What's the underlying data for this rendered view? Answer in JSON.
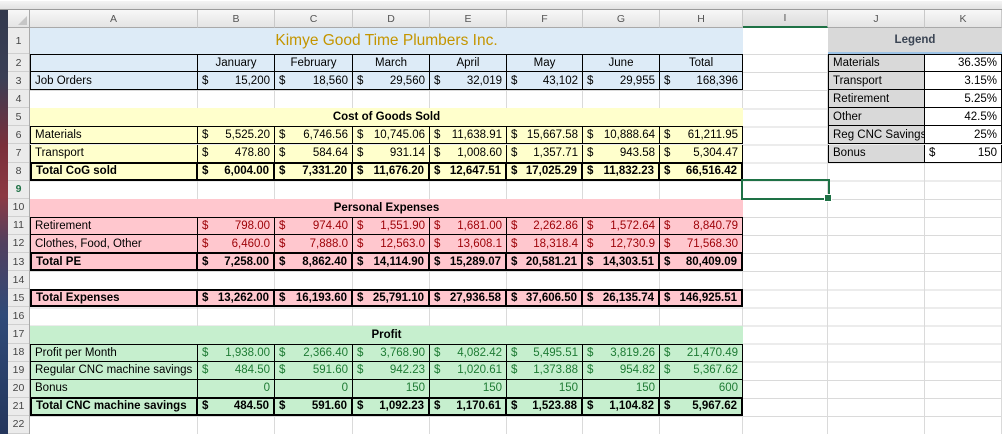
{
  "currency": "$",
  "title": "Kimye Good Time Plumbers Inc.",
  "months": [
    "January",
    "February",
    "March",
    "April",
    "May",
    "June",
    "Total"
  ],
  "sections": {
    "cogs": "Cost of Goods Sold",
    "personal": "Personal Expenses",
    "profit": "Profit"
  },
  "rows": {
    "job_orders": {
      "label": "Job Orders",
      "values": [
        "15,200",
        "18,560",
        "29,560",
        "32,019",
        "43,102",
        "29,955",
        "168,396"
      ]
    },
    "materials": {
      "label": "Materials",
      "values": [
        "5,525.20",
        "6,746.56",
        "10,745.06",
        "11,638.91",
        "15,667.58",
        "10,888.64",
        "61,211.95"
      ]
    },
    "transport": {
      "label": "Transport",
      "values": [
        "478.80",
        "584.64",
        "931.14",
        "1,008.60",
        "1,357.71",
        "943.58",
        "5,304.47"
      ]
    },
    "total_cog": {
      "label": "Total CoG sold",
      "values": [
        "6,004.00",
        "7,331.20",
        "11,676.20",
        "12,647.51",
        "17,025.29",
        "11,832.23",
        "66,516.42"
      ]
    },
    "retirement": {
      "label": "Retirement",
      "values": [
        "798.00",
        "974.40",
        "1,551.90",
        "1,681.00",
        "2,262.86",
        "1,572.64",
        "8,840.79"
      ]
    },
    "clothes": {
      "label": "Clothes, Food, Other",
      "values": [
        "6,460.0",
        "7,888.0",
        "12,563.0",
        "13,608.1",
        "18,318.4",
        "12,730.9",
        "71,568.30"
      ]
    },
    "total_pe": {
      "label": "Total PE",
      "values": [
        "7,258.00",
        "8,862.40",
        "14,114.90",
        "15,289.07",
        "20,581.21",
        "14,303.51",
        "80,409.09"
      ]
    },
    "total_expenses": {
      "label": "Total Expenses",
      "values": [
        "13,262.00",
        "16,193.60",
        "25,791.10",
        "27,936.58",
        "37,606.50",
        "26,135.74",
        "146,925.51"
      ]
    },
    "profit_month": {
      "label": "Profit per Month",
      "values": [
        "1,938.00",
        "2,366.40",
        "3,768.90",
        "4,082.42",
        "5,495.51",
        "3,819.26",
        "21,470.49"
      ]
    },
    "reg_cnc": {
      "label": "Regular CNC machine savings",
      "values": [
        "484.50",
        "591.60",
        "942.23",
        "1,020.61",
        "1,373.88",
        "954.82",
        "5,367.62"
      ]
    },
    "bonus": {
      "label": "Bonus",
      "values": [
        "0",
        "0",
        "150",
        "150",
        "150",
        "150",
        "600"
      ]
    },
    "total_cnc": {
      "label": "Total CNC machine savings",
      "values": [
        "484.50",
        "591.60",
        "1,092.23",
        "1,170.61",
        "1,523.88",
        "1,104.82",
        "5,967.62"
      ]
    }
  },
  "legend": {
    "header": "Legend",
    "rows": [
      {
        "label": "Materials",
        "value": "36.35%"
      },
      {
        "label": "Transport",
        "value": "3.15%"
      },
      {
        "label": "Retirement",
        "value": "5.25%"
      },
      {
        "label": "Other",
        "value": "42.5%"
      },
      {
        "label": "Reg CNC Savings",
        "value": "25%"
      },
      {
        "label": "Bonus",
        "value": "150",
        "has_currency": true
      }
    ]
  },
  "chrome": {
    "col_headers": [
      "A",
      "B",
      "C",
      "D",
      "E",
      "F",
      "G",
      "H",
      "I",
      "J",
      "K"
    ],
    "row_numbers": [
      "1",
      "2",
      "3",
      "4",
      "5",
      "6",
      "7",
      "8",
      "9",
      "10",
      "11",
      "12",
      "13",
      "14",
      "15",
      "16",
      "17",
      "18",
      "19",
      "20",
      "21",
      "22"
    ],
    "selected_column": "I",
    "selected_row": "9",
    "active_cell": "I9"
  },
  "colors": {
    "section_blue": "#DDEBF7",
    "section_yellow": "#FFFFCC",
    "section_pink": "#FFC7CE",
    "section_green": "#C6EFCE",
    "title_gold": "#C49500",
    "bad_text_red": "#9C0006",
    "good_text_green": "#1E7B34",
    "selection_green": "#1E7145",
    "legend_gray": "#D9D9D9"
  }
}
